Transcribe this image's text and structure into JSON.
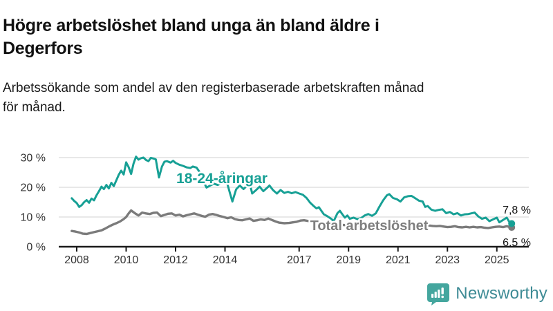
{
  "header": {
    "title_lines": [
      "Högre arbetslöshet bland unga än bland äldre i",
      "Degerfors"
    ],
    "subtitle_lines": [
      "Arbetssökande som andel av den registerbaserade arbetskraften månad",
      "för månad."
    ]
  },
  "footer": {
    "brand": "Newsworthy",
    "logo_icon": "bar-chart-speech-bubble"
  },
  "colors": {
    "youth_line": "#17a095",
    "total_line": "#7b7b7b",
    "grid": "#dadada",
    "axis": "#1a1a1a",
    "tick_label": "#333333",
    "total_label": "#7f7f7f",
    "value_label": "#111111",
    "logo_teal": "#44a69e",
    "logo_text": "#3e8b95"
  },
  "chart_data": {
    "type": "line",
    "title": "Högre arbetslöshet bland unga än bland äldre i Degerfors",
    "subtitle": "Arbetssökande som andel av den registerbaserade arbetskraften månad för månad.",
    "xlabel": "",
    "ylabel": "",
    "grid": "horizontal",
    "legend_position": "inline-labels",
    "x_ticks": [
      2008,
      2010,
      2012,
      2014,
      2017,
      2019,
      2021,
      2023,
      2025
    ],
    "x_tick_labels": [
      "2008",
      "2010",
      "2012",
      "2014",
      "2017",
      "2019",
      "2021",
      "2023",
      "2025"
    ],
    "xlim": [
      2007.3,
      2026.3
    ],
    "y_ticks": [
      0,
      10,
      20,
      30
    ],
    "y_tick_labels": [
      "0 %",
      "10 %",
      "20 %",
      "30 %"
    ],
    "ylim": [
      0,
      32
    ],
    "series": [
      {
        "name": "18-24-åringar",
        "color": "#17a095",
        "end_label": "7,8 %",
        "end_value": 7.8,
        "points": [
          [
            2007.8,
            16.3
          ],
          [
            2007.9,
            15.4
          ],
          [
            2008.0,
            14.7
          ],
          [
            2008.1,
            13.4
          ],
          [
            2008.2,
            14.0
          ],
          [
            2008.3,
            15.0
          ],
          [
            2008.4,
            15.7
          ],
          [
            2008.5,
            14.8
          ],
          [
            2008.6,
            16.2
          ],
          [
            2008.7,
            15.6
          ],
          [
            2008.8,
            17.3
          ],
          [
            2008.9,
            18.7
          ],
          [
            2009.0,
            20.2
          ],
          [
            2009.1,
            19.4
          ],
          [
            2009.2,
            20.8
          ],
          [
            2009.3,
            19.6
          ],
          [
            2009.4,
            21.5
          ],
          [
            2009.5,
            20.4
          ],
          [
            2009.6,
            22.3
          ],
          [
            2009.7,
            24.2
          ],
          [
            2009.8,
            25.6
          ],
          [
            2009.9,
            24.3
          ],
          [
            2010.0,
            28.4
          ],
          [
            2010.1,
            26.8
          ],
          [
            2010.2,
            24.5
          ],
          [
            2010.3,
            28.0
          ],
          [
            2010.4,
            30.3
          ],
          [
            2010.5,
            29.3
          ],
          [
            2010.6,
            29.8
          ],
          [
            2010.7,
            30.0
          ],
          [
            2010.8,
            29.2
          ],
          [
            2010.9,
            28.8
          ],
          [
            2011.0,
            29.9
          ],
          [
            2011.1,
            29.7
          ],
          [
            2011.2,
            29.4
          ],
          [
            2011.33,
            23.3
          ],
          [
            2011.45,
            27.0
          ],
          [
            2011.55,
            28.6
          ],
          [
            2011.65,
            28.8
          ],
          [
            2011.8,
            28.3
          ],
          [
            2011.9,
            28.9
          ],
          [
            2012.0,
            28.2
          ],
          [
            2012.15,
            27.6
          ],
          [
            2012.3,
            27.2
          ],
          [
            2012.45,
            26.7
          ],
          [
            2012.6,
            26.5
          ],
          [
            2012.7,
            27.0
          ],
          [
            2012.85,
            26.6
          ],
          [
            2013.0,
            24.8
          ],
          [
            2013.1,
            22.5
          ],
          [
            2013.25,
            19.9
          ],
          [
            2013.4,
            20.6
          ],
          [
            2013.55,
            21.2
          ],
          [
            2013.7,
            20.8
          ],
          [
            2013.85,
            21.3
          ],
          [
            2014.0,
            21.8
          ],
          [
            2014.1,
            21.0
          ],
          [
            2014.2,
            18.0
          ],
          [
            2014.3,
            15.2
          ],
          [
            2014.45,
            19.3
          ],
          [
            2014.6,
            20.6
          ],
          [
            2014.75,
            19.4
          ],
          [
            2014.9,
            20.6
          ],
          [
            2015.0,
            21.4
          ],
          [
            2015.1,
            17.9
          ],
          [
            2015.25,
            19.0
          ],
          [
            2015.4,
            20.2
          ],
          [
            2015.55,
            18.7
          ],
          [
            2015.7,
            19.8
          ],
          [
            2015.8,
            20.6
          ],
          [
            2015.95,
            19.0
          ],
          [
            2016.1,
            17.9
          ],
          [
            2016.25,
            19.1
          ],
          [
            2016.4,
            18.1
          ],
          [
            2016.55,
            18.5
          ],
          [
            2016.7,
            18.0
          ],
          [
            2016.85,
            18.4
          ],
          [
            2017.0,
            17.9
          ],
          [
            2017.15,
            17.5
          ],
          [
            2017.3,
            16.4
          ],
          [
            2017.45,
            14.8
          ],
          [
            2017.6,
            13.6
          ],
          [
            2017.7,
            12.9
          ],
          [
            2017.8,
            13.3
          ],
          [
            2017.9,
            12.1
          ],
          [
            2018.0,
            10.9
          ],
          [
            2018.15,
            10.2
          ],
          [
            2018.3,
            9.4
          ],
          [
            2018.4,
            8.6
          ],
          [
            2018.55,
            11.3
          ],
          [
            2018.65,
            12.1
          ],
          [
            2018.75,
            10.9
          ],
          [
            2018.85,
            9.8
          ],
          [
            2018.95,
            10.5
          ],
          [
            2019.05,
            9.4
          ],
          [
            2019.2,
            9.8
          ],
          [
            2019.35,
            9.3
          ],
          [
            2019.5,
            9.6
          ],
          [
            2019.65,
            10.5
          ],
          [
            2019.8,
            11.0
          ],
          [
            2019.95,
            10.4
          ],
          [
            2020.1,
            11.2
          ],
          [
            2020.25,
            13.5
          ],
          [
            2020.4,
            15.6
          ],
          [
            2020.55,
            17.3
          ],
          [
            2020.65,
            17.7
          ],
          [
            2020.8,
            16.4
          ],
          [
            2020.95,
            16.0
          ],
          [
            2021.1,
            15.2
          ],
          [
            2021.25,
            16.6
          ],
          [
            2021.4,
            17.0
          ],
          [
            2021.55,
            17.1
          ],
          [
            2021.7,
            16.3
          ],
          [
            2021.85,
            15.5
          ],
          [
            2022.0,
            15.2
          ],
          [
            2022.1,
            13.4
          ],
          [
            2022.2,
            13.7
          ],
          [
            2022.35,
            12.5
          ],
          [
            2022.5,
            12.1
          ],
          [
            2022.65,
            12.4
          ],
          [
            2022.8,
            12.6
          ],
          [
            2022.95,
            11.3
          ],
          [
            2023.1,
            11.7
          ],
          [
            2023.25,
            10.9
          ],
          [
            2023.4,
            11.3
          ],
          [
            2023.55,
            10.5
          ],
          [
            2023.7,
            10.9
          ],
          [
            2023.85,
            11.0
          ],
          [
            2024.0,
            11.3
          ],
          [
            2024.1,
            11.5
          ],
          [
            2024.25,
            10.2
          ],
          [
            2024.4,
            9.4
          ],
          [
            2024.55,
            9.8
          ],
          [
            2024.7,
            8.6
          ],
          [
            2024.85,
            9.2
          ],
          [
            2025.0,
            9.8
          ],
          [
            2025.1,
            8.2
          ],
          [
            2025.25,
            9.0
          ],
          [
            2025.4,
            9.8
          ],
          [
            2025.5,
            8.4
          ],
          [
            2025.6,
            7.8
          ]
        ]
      },
      {
        "name": "Total arbetslöshet",
        "color": "#7b7b7b",
        "end_label": "6,5 %",
        "end_value": 6.5,
        "points": [
          [
            2007.8,
            5.3
          ],
          [
            2007.95,
            5.1
          ],
          [
            2008.1,
            4.8
          ],
          [
            2008.25,
            4.4
          ],
          [
            2008.4,
            4.3
          ],
          [
            2008.55,
            4.6
          ],
          [
            2008.7,
            4.9
          ],
          [
            2008.85,
            5.2
          ],
          [
            2009.0,
            5.5
          ],
          [
            2009.15,
            6.1
          ],
          [
            2009.3,
            6.8
          ],
          [
            2009.45,
            7.4
          ],
          [
            2009.6,
            7.9
          ],
          [
            2009.75,
            8.5
          ],
          [
            2009.9,
            9.3
          ],
          [
            2010.0,
            10.0
          ],
          [
            2010.1,
            11.2
          ],
          [
            2010.2,
            12.2
          ],
          [
            2010.35,
            11.3
          ],
          [
            2010.5,
            10.5
          ],
          [
            2010.65,
            11.5
          ],
          [
            2010.8,
            11.2
          ],
          [
            2010.95,
            11.0
          ],
          [
            2011.1,
            11.4
          ],
          [
            2011.25,
            11.5
          ],
          [
            2011.4,
            10.3
          ],
          [
            2011.55,
            10.7
          ],
          [
            2011.7,
            11.1
          ],
          [
            2011.85,
            11.2
          ],
          [
            2012.0,
            10.5
          ],
          [
            2012.15,
            10.8
          ],
          [
            2012.3,
            10.2
          ],
          [
            2012.45,
            10.6
          ],
          [
            2012.6,
            10.9
          ],
          [
            2012.75,
            11.2
          ],
          [
            2012.9,
            10.8
          ],
          [
            2013.05,
            10.4
          ],
          [
            2013.2,
            10.1
          ],
          [
            2013.35,
            10.8
          ],
          [
            2013.5,
            11.0
          ],
          [
            2013.65,
            10.7
          ],
          [
            2013.8,
            10.3
          ],
          [
            2013.95,
            10.0
          ],
          [
            2014.1,
            9.6
          ],
          [
            2014.25,
            9.9
          ],
          [
            2014.4,
            9.3
          ],
          [
            2014.55,
            9.0
          ],
          [
            2014.7,
            8.9
          ],
          [
            2014.85,
            9.2
          ],
          [
            2015.0,
            9.5
          ],
          [
            2015.15,
            8.7
          ],
          [
            2015.3,
            8.9
          ],
          [
            2015.45,
            9.2
          ],
          [
            2015.6,
            9.0
          ],
          [
            2015.75,
            9.5
          ],
          [
            2015.9,
            9.0
          ],
          [
            2016.05,
            8.5
          ],
          [
            2016.2,
            8.1
          ],
          [
            2016.4,
            7.9
          ],
          [
            2016.6,
            8.0
          ],
          [
            2016.75,
            8.2
          ],
          [
            2016.9,
            8.4
          ],
          [
            2017.05,
            8.8
          ],
          [
            2017.2,
            8.9
          ],
          [
            2017.4,
            8.6
          ],
          [
            2017.6,
            8.2
          ],
          [
            2017.8,
            8.0
          ],
          [
            2018.0,
            7.8
          ],
          [
            2018.2,
            7.6
          ],
          [
            2018.4,
            7.5
          ],
          [
            2018.6,
            7.4
          ],
          [
            2018.8,
            7.3
          ],
          [
            2019.0,
            7.2
          ],
          [
            2019.2,
            7.1
          ],
          [
            2019.4,
            7.0
          ],
          [
            2019.6,
            7.0
          ],
          [
            2019.8,
            7.1
          ],
          [
            2020.0,
            7.4
          ],
          [
            2020.2,
            7.8
          ],
          [
            2020.4,
            8.0
          ],
          [
            2020.6,
            8.1
          ],
          [
            2020.8,
            8.0
          ],
          [
            2021.0,
            7.9
          ],
          [
            2021.2,
            7.8
          ],
          [
            2021.4,
            7.6
          ],
          [
            2021.6,
            7.5
          ],
          [
            2021.8,
            7.4
          ],
          [
            2022.0,
            7.3
          ],
          [
            2022.2,
            7.2
          ],
          [
            2022.4,
            7.0
          ],
          [
            2022.55,
            6.9
          ],
          [
            2022.7,
            7.0
          ],
          [
            2022.85,
            6.8
          ],
          [
            2023.0,
            6.6
          ],
          [
            2023.15,
            6.7
          ],
          [
            2023.3,
            6.9
          ],
          [
            2023.45,
            6.6
          ],
          [
            2023.6,
            6.5
          ],
          [
            2023.75,
            6.7
          ],
          [
            2023.9,
            6.5
          ],
          [
            2024.05,
            6.7
          ],
          [
            2024.2,
            6.5
          ],
          [
            2024.35,
            6.6
          ],
          [
            2024.5,
            6.4
          ],
          [
            2024.65,
            6.3
          ],
          [
            2024.8,
            6.5
          ],
          [
            2024.95,
            6.7
          ],
          [
            2025.1,
            6.8
          ],
          [
            2025.25,
            6.6
          ],
          [
            2025.4,
            6.9
          ],
          [
            2025.5,
            6.7
          ],
          [
            2025.6,
            6.5
          ]
        ]
      }
    ]
  }
}
